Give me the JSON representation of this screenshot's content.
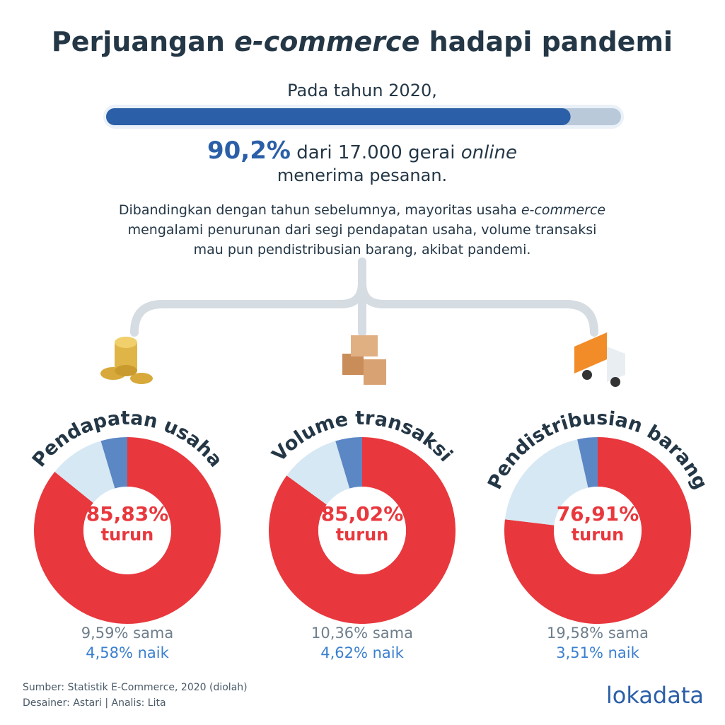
{
  "header": {
    "title": [
      "Perjuangan ",
      "e-commerce",
      " hadapi pandemi"
    ]
  },
  "chart_data": [
    {
      "type": "progress",
      "intro": "Pada tahun 2020,",
      "value": 90.2,
      "value_label": "90,2%",
      "xlim": [
        0,
        100
      ],
      "color": "#2b5fa8",
      "text": [
        "dari 17.000 gerai ",
        "online",
        "menerima pesanan."
      ]
    },
    {
      "type": "donut",
      "title": "Pendapatan usaha",
      "categories": [
        "turun",
        "sama",
        "naik"
      ],
      "values": [
        85.83,
        9.59,
        4.58
      ],
      "value_labels": [
        "85,83%",
        "9,59%",
        "4,58%"
      ],
      "colors": [
        "#e8383d",
        "#d6e8f3",
        "#5b87c5"
      ]
    },
    {
      "type": "donut",
      "title": "Volume transaksi",
      "categories": [
        "turun",
        "sama",
        "naik"
      ],
      "values": [
        85.02,
        10.36,
        4.62
      ],
      "value_labels": [
        "85,02%",
        "10,36%",
        "4,62%"
      ],
      "colors": [
        "#e8383d",
        "#d6e8f3",
        "#5b87c5"
      ]
    },
    {
      "type": "donut",
      "title": "Pendistribusian barang",
      "categories": [
        "turun",
        "sama",
        "naik"
      ],
      "values": [
        76.91,
        19.58,
        3.51
      ],
      "value_labels": [
        "76,91%",
        "19,58%",
        "3,51%"
      ],
      "colors": [
        "#e8383d",
        "#d6e8f3",
        "#5b87c5"
      ]
    }
  ],
  "description": [
    "Dibandingkan dengan tahun sebelumnya, mayoritas usaha ",
    "e-commerce",
    "mengalami penurunan dari segi pendapatan usaha, volume transaksi",
    "mau pun pendistribusian barang, akibat pandemi."
  ],
  "footer": {
    "source": "Sumber: Statistik E-Commerce, 2020 (diolah)",
    "credits": "Desainer: Astari | Analis: Lita",
    "logo": "lokadata"
  }
}
